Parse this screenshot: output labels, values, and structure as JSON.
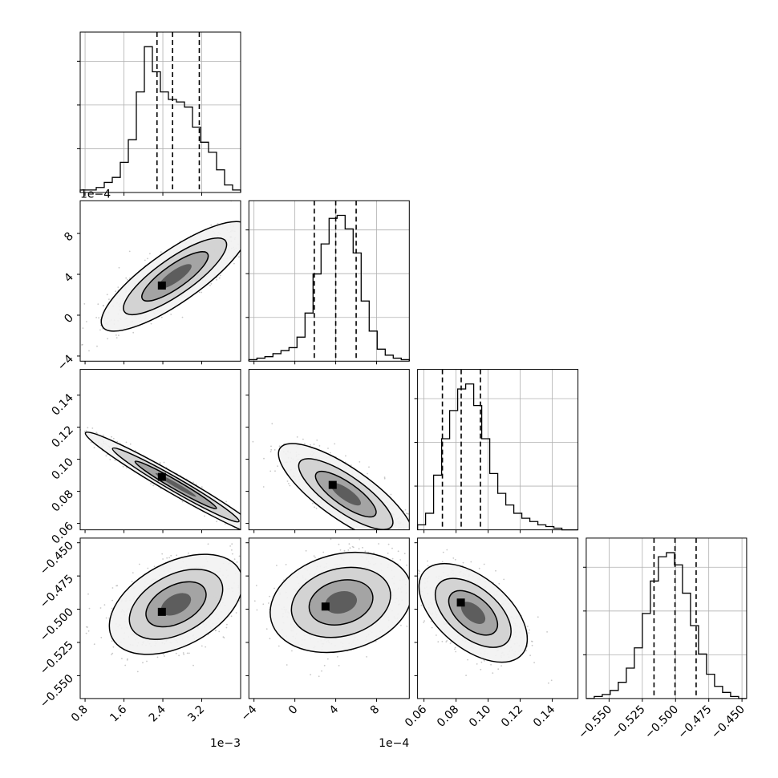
{
  "chart_data": {
    "type": "corner",
    "parameters": [
      {
        "index": 0,
        "range": [
          0.0007,
          0.004
        ],
        "ticks": [
          0.0008,
          0.0016,
          0.0024,
          0.0032
        ],
        "tick_labels": [
          "0.8",
          "1.6",
          "2.4",
          "3.2"
        ],
        "offset_text": "1e−3",
        "quantiles": [
          0.00228,
          0.0026,
          0.00315
        ]
      },
      {
        "index": 1,
        "range": [
          -0.00045,
          0.00112
        ],
        "ticks": [
          -0.0004,
          0.0,
          0.0004,
          0.0008
        ],
        "tick_labels": [
          "−4",
          "0",
          "4",
          "8"
        ],
        "offset_text": "1e−4",
        "quantiles": [
          0.00019,
          0.0004,
          0.0006
        ]
      },
      {
        "index": 2,
        "range": [
          0.056,
          0.156
        ],
        "ticks": [
          0.06,
          0.08,
          0.1,
          0.12,
          0.14
        ],
        "tick_labels": [
          "0.06",
          "0.08",
          "0.10",
          "0.12",
          "0.14"
        ],
        "offset_text": "",
        "quantiles": [
          0.0715,
          0.0832,
          0.0952
        ]
      },
      {
        "index": 3,
        "range": [
          -0.5672,
          -0.4465
        ],
        "ticks": [
          -0.55,
          -0.525,
          -0.5,
          -0.475,
          -0.45
        ],
        "tick_labels": [
          "−0.550",
          "−0.525",
          "−0.500",
          "−0.475",
          "−0.450"
        ],
        "offset_text": "",
        "quantiles": [
          -0.5162,
          -0.5004,
          -0.4845
        ]
      }
    ],
    "histograms": [
      {
        "param": 0,
        "bins": 20,
        "counts": [
          1,
          1,
          2,
          4,
          6,
          12,
          21,
          40,
          58,
          48,
          40,
          37,
          36,
          34,
          26,
          20,
          16,
          9,
          3,
          1
        ]
      },
      {
        "param": 1,
        "bins": 20,
        "counts": [
          1,
          2,
          3,
          5,
          7,
          9,
          16,
          32,
          58,
          78,
          95,
          97,
          88,
          72,
          40,
          20,
          8,
          4,
          2,
          1
        ]
      },
      {
        "param": 2,
        "bins": 20,
        "counts": [
          3,
          10,
          33,
          55,
          72,
          85,
          88,
          75,
          55,
          34,
          22,
          15,
          10,
          7,
          5,
          3,
          2,
          1,
          0,
          0
        ]
      },
      {
        "param": 3,
        "bins": 20,
        "counts": [
          0,
          1,
          2,
          4,
          8,
          15,
          25,
          42,
          58,
          70,
          72,
          66,
          52,
          36,
          22,
          12,
          6,
          3,
          1,
          0
        ]
      }
    ],
    "pairs": [
      {
        "x": 0,
        "y": 1,
        "mode_x": 0.00238,
        "mode_y": 0.00029
      },
      {
        "x": 0,
        "y": 2,
        "mode_x": 0.00238,
        "mode_y": 0.089
      },
      {
        "x": 1,
        "y": 2,
        "mode_x": 0.00037,
        "mode_y": 0.084
      },
      {
        "x": 0,
        "y": 3,
        "mode_x": 0.00238,
        "mode_y": -0.502
      },
      {
        "x": 1,
        "y": 3,
        "mode_x": 0.0003,
        "mode_y": -0.498
      },
      {
        "x": 2,
        "y": 3,
        "mode_x": 0.083,
        "mode_y": -0.495
      }
    ],
    "grid": true
  }
}
